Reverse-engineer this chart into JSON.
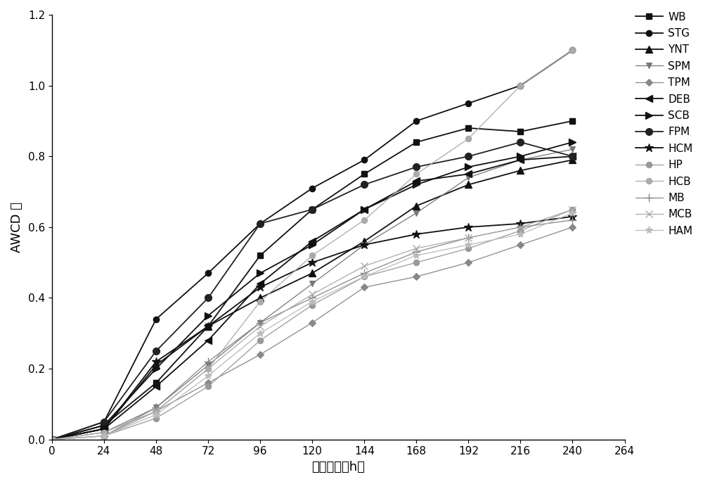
{
  "x": [
    0,
    24,
    48,
    72,
    96,
    120,
    144,
    168,
    192,
    216,
    240
  ],
  "series": {
    "WB": [
      0,
      0.04,
      0.16,
      0.32,
      0.52,
      0.65,
      0.75,
      0.84,
      0.88,
      0.87,
      0.9
    ],
    "STG": [
      0,
      0.05,
      0.34,
      0.47,
      0.61,
      0.71,
      0.79,
      0.9,
      0.95,
      1.0,
      1.1
    ],
    "YNT": [
      0,
      0.03,
      0.21,
      0.32,
      0.4,
      0.47,
      0.56,
      0.66,
      0.72,
      0.76,
      0.79
    ],
    "SPM": [
      0,
      0.02,
      0.09,
      0.21,
      0.33,
      0.44,
      0.55,
      0.64,
      0.74,
      0.79,
      0.82
    ],
    "TPM": [
      0,
      0.01,
      0.08,
      0.16,
      0.24,
      0.33,
      0.43,
      0.46,
      0.5,
      0.55,
      0.6
    ],
    "DEB": [
      0,
      0.03,
      0.15,
      0.28,
      0.44,
      0.56,
      0.65,
      0.73,
      0.75,
      0.79,
      0.8
    ],
    "SCB": [
      0,
      0.04,
      0.2,
      0.35,
      0.47,
      0.55,
      0.65,
      0.72,
      0.77,
      0.8,
      0.84
    ],
    "FPM": [
      0,
      0.05,
      0.25,
      0.4,
      0.61,
      0.65,
      0.72,
      0.77,
      0.8,
      0.84,
      0.8
    ],
    "HCM": [
      0,
      0.03,
      0.22,
      0.32,
      0.43,
      0.5,
      0.55,
      0.58,
      0.6,
      0.61,
      0.63
    ],
    "HP": [
      0,
      0.01,
      0.06,
      0.15,
      0.28,
      0.38,
      0.46,
      0.5,
      0.54,
      0.59,
      0.65
    ],
    "HCB": [
      0,
      0.02,
      0.08,
      0.2,
      0.39,
      0.52,
      0.62,
      0.75,
      0.85,
      1.0,
      1.1
    ],
    "MB": [
      0,
      0.01,
      0.09,
      0.22,
      0.33,
      0.4,
      0.47,
      0.53,
      0.57,
      0.6,
      0.62
    ],
    "MCB": [
      0,
      0.01,
      0.08,
      0.2,
      0.32,
      0.41,
      0.49,
      0.54,
      0.57,
      0.6,
      0.65
    ],
    "HAM": [
      0,
      0.01,
      0.07,
      0.18,
      0.3,
      0.39,
      0.46,
      0.52,
      0.55,
      0.58,
      0.64
    ]
  },
  "styles": {
    "WB": {
      "color": "#111111",
      "marker": "s",
      "mfc": "#111111",
      "lw": 1.3,
      "ms": 6,
      "mew": 1.0
    },
    "STG": {
      "color": "#111111",
      "marker": "o",
      "mfc": "#111111",
      "lw": 1.3,
      "ms": 6,
      "mew": 1.0
    },
    "YNT": {
      "color": "#111111",
      "marker": "^",
      "mfc": "#111111",
      "lw": 1.3,
      "ms": 7,
      "mew": 1.0
    },
    "SPM": {
      "color": "#777777",
      "marker": "v",
      "mfc": "#777777",
      "lw": 0.9,
      "ms": 6,
      "mew": 0.8
    },
    "TPM": {
      "color": "#888888",
      "marker": "D",
      "mfc": "#888888",
      "lw": 0.9,
      "ms": 5,
      "mew": 0.8
    },
    "DEB": {
      "color": "#111111",
      "marker": "<",
      "mfc": "#111111",
      "lw": 1.3,
      "ms": 7,
      "mew": 1.0
    },
    "SCB": {
      "color": "#111111",
      "marker": ">",
      "mfc": "#111111",
      "lw": 1.3,
      "ms": 7,
      "mew": 1.0
    },
    "FPM": {
      "color": "#222222",
      "marker": "o",
      "mfc": "#222222",
      "lw": 1.3,
      "ms": 7,
      "mew": 1.0
    },
    "HCM": {
      "color": "#111111",
      "marker": "*",
      "mfc": "#111111",
      "lw": 1.3,
      "ms": 9,
      "mew": 1.0
    },
    "HP": {
      "color": "#999999",
      "marker": "o",
      "mfc": "#999999",
      "lw": 0.9,
      "ms": 6,
      "mew": 0.8
    },
    "HCB": {
      "color": "#aaaaaa",
      "marker": "o",
      "mfc": "#aaaaaa",
      "lw": 0.9,
      "ms": 6,
      "mew": 0.8
    },
    "MB": {
      "color": "#888888",
      "marker": "+",
      "mfc": "#888888",
      "lw": 0.9,
      "ms": 8,
      "mew": 1.0
    },
    "MCB": {
      "color": "#aaaaaa",
      "marker": "x",
      "mfc": "#aaaaaa",
      "lw": 0.9,
      "ms": 7,
      "mew": 1.0
    },
    "HAM": {
      "color": "#bbbbbb",
      "marker": "*",
      "mfc": "#bbbbbb",
      "lw": 0.9,
      "ms": 8,
      "mew": 0.8
    }
  },
  "series_order": [
    "WB",
    "STG",
    "YNT",
    "SPM",
    "TPM",
    "DEB",
    "SCB",
    "FPM",
    "HCM",
    "HP",
    "HCB",
    "MB",
    "MCB",
    "HAM"
  ],
  "xlabel": "培养时间（h）",
  "ylabel": "AWCD 値",
  "xlim": [
    0,
    264
  ],
  "ylim": [
    0,
    1.2
  ],
  "xticks": [
    0,
    24,
    48,
    72,
    96,
    120,
    144,
    168,
    192,
    216,
    240,
    264
  ],
  "yticks": [
    0.0,
    0.2,
    0.4,
    0.6,
    0.8,
    1.0,
    1.2
  ],
  "figsize": [
    10.0,
    6.88
  ],
  "dpi": 100
}
